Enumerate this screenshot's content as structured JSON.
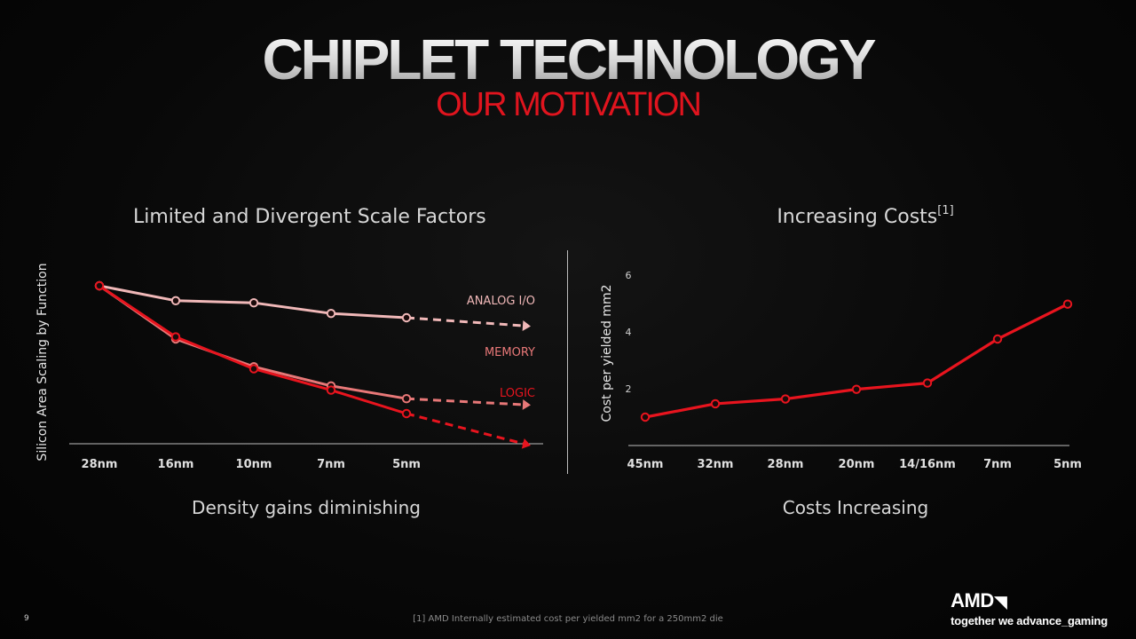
{
  "slide": {
    "title": "CHIPLET TECHNOLOGY",
    "subtitle": "OUR MOTIVATION",
    "page_number": "9",
    "footnote": "[1] AMD Internally estimated cost per yielded mm2 for a 250mm2 die",
    "brand": {
      "logo": "AMD",
      "logo_icon": "amd-arrow-icon",
      "tagline": "together we advance_gaming"
    }
  },
  "left_panel": {
    "title": "Limited and Divergent Scale Factors",
    "caption": "Density gains diminishing"
  },
  "right_panel": {
    "title": "Increasing Costs",
    "title_superscript": "[1]",
    "caption": "Costs Increasing"
  },
  "chart_data": [
    {
      "type": "line",
      "title": "Limited and Divergent Scale Factors",
      "xlabel": "",
      "ylabel": "Silicon Area Scaling by Function",
      "categories": [
        "28nm",
        "16nm",
        "10nm",
        "7nm",
        "5nm",
        ""
      ],
      "y_ticks_shown": false,
      "ylim": [
        0,
        1
      ],
      "grid": false,
      "legend": "inline labels at line ends",
      "series": [
        {
          "name": "ANALOG I/O",
          "color": "#f0b8b8",
          "values": [
            1.0,
            0.93,
            0.92,
            0.87,
            0.85,
            0.81
          ]
        },
        {
          "name": "MEMORY",
          "color": "#e87878",
          "values": [
            1.0,
            0.75,
            0.62,
            0.53,
            0.47,
            0.44
          ]
        },
        {
          "name": "LOGIC",
          "color": "#e8141e",
          "values": [
            1.0,
            0.76,
            0.61,
            0.51,
            0.4,
            0.25
          ]
        }
      ],
      "annotations": "last segment of each series is dashed with an arrowhead (projection)"
    },
    {
      "type": "line",
      "title": "Increasing Costs",
      "xlabel": "",
      "ylabel": "Cost per yielded mm2",
      "categories": [
        "45nm",
        "32nm",
        "28nm",
        "20nm",
        "14/16nm",
        "7nm",
        "5nm"
      ],
      "y_ticks": [
        2,
        4,
        6
      ],
      "ylim": [
        0,
        6.3
      ],
      "grid": false,
      "legend": "none",
      "series": [
        {
          "color": "#e8141e",
          "values": [
            1.0,
            1.47,
            1.64,
            1.98,
            2.2,
            3.75,
            4.98
          ]
        }
      ]
    }
  ]
}
